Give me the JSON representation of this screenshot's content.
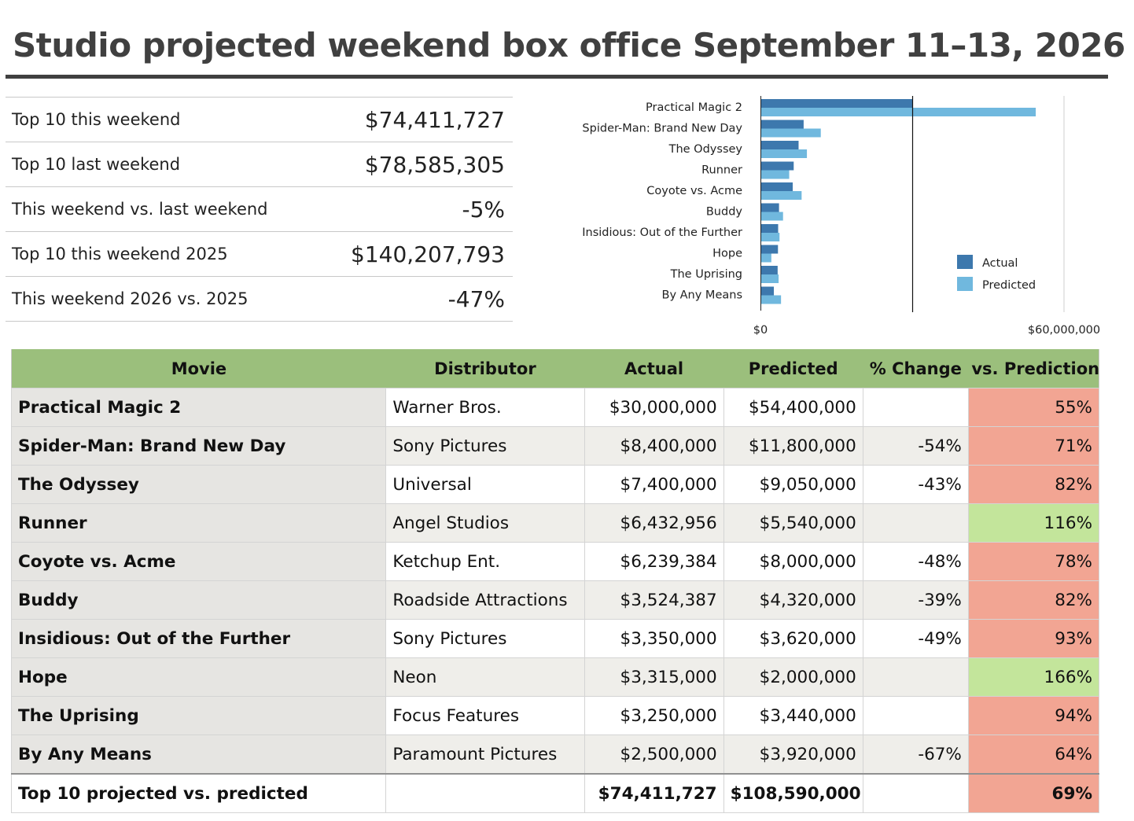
{
  "title": "Studio projected weekend box office September 11–13, 2026",
  "summary": [
    {
      "label": "Top 10 this weekend",
      "value": "$74,411,727",
      "tone": "pos"
    },
    {
      "label": "Top 10 last weekend",
      "value": "$78,585,305",
      "tone": "pos"
    },
    {
      "label": "This weekend vs. last weekend",
      "value": "-5%",
      "tone": "neg"
    },
    {
      "label": "Top 10 this weekend 2025",
      "value": "$140,207,793",
      "tone": "pos"
    },
    {
      "label": "This weekend 2026 vs. 2025",
      "value": "-47%",
      "tone": "neg"
    }
  ],
  "colors": {
    "actual": "#3d78ad",
    "predicted": "#70b8de",
    "positive_text": "#6a9a3a",
    "negative_text": "#d9381e",
    "header_bg": "#9bbf7c",
    "below_prediction": "#f2a593",
    "above_prediction": "#c3e59b"
  },
  "chart_data": {
    "type": "bar",
    "orientation": "horizontal",
    "categories": [
      "Practical Magic 2",
      "Spider-Man: Brand New Day",
      "The Odyssey",
      "Runner",
      "Coyote vs. Acme",
      "Buddy",
      "Insidious: Out of the Further",
      "Hope",
      "The Uprising",
      "By Any Means"
    ],
    "series": [
      {
        "name": "Actual",
        "values": [
          30000000,
          8400000,
          7400000,
          6432956,
          6239384,
          3524387,
          3350000,
          3315000,
          3250000,
          2500000
        ]
      },
      {
        "name": "Predicted",
        "values": [
          54400000,
          11800000,
          9050000,
          5540000,
          8000000,
          4320000,
          3620000,
          2000000,
          3440000,
          3920000
        ]
      }
    ],
    "xlim": [
      0,
      60000000
    ],
    "xticks": [
      "$0",
      "$60,000,000"
    ],
    "reference_line": 30000000,
    "legend": "right"
  },
  "table": {
    "headers": [
      "Movie",
      "Distributor",
      "Actual",
      "Predicted",
      "% Change",
      "vs. Prediction"
    ],
    "rows": [
      {
        "movie": "Practical Magic 2",
        "distributor": "Warner Bros.",
        "actual": "$30,000,000",
        "predicted": "$54,400,000",
        "change": "",
        "vs": "55%",
        "vs_status": "below"
      },
      {
        "movie": "Spider-Man: Brand New Day",
        "distributor": "Sony Pictures",
        "actual": "$8,400,000",
        "predicted": "$11,800,000",
        "change": "-54%",
        "vs": "71%",
        "vs_status": "below"
      },
      {
        "movie": "The Odyssey",
        "distributor": "Universal",
        "actual": "$7,400,000",
        "predicted": "$9,050,000",
        "change": "-43%",
        "vs": "82%",
        "vs_status": "below"
      },
      {
        "movie": "Runner",
        "distributor": "Angel Studios",
        "actual": "$6,432,956",
        "predicted": "$5,540,000",
        "change": "",
        "vs": "116%",
        "vs_status": "above"
      },
      {
        "movie": "Coyote vs. Acme",
        "distributor": "Ketchup Ent.",
        "actual": "$6,239,384",
        "predicted": "$8,000,000",
        "change": "-48%",
        "vs": "78%",
        "vs_status": "below"
      },
      {
        "movie": "Buddy",
        "distributor": "Roadside Attractions",
        "actual": "$3,524,387",
        "predicted": "$4,320,000",
        "change": "-39%",
        "vs": "82%",
        "vs_status": "below"
      },
      {
        "movie": "Insidious: Out of the Further",
        "distributor": "Sony Pictures",
        "actual": "$3,350,000",
        "predicted": "$3,620,000",
        "change": "-49%",
        "vs": "93%",
        "vs_status": "below"
      },
      {
        "movie": "Hope",
        "distributor": "Neon",
        "actual": "$3,315,000",
        "predicted": "$2,000,000",
        "change": "",
        "vs": "166%",
        "vs_status": "above"
      },
      {
        "movie": "The Uprising",
        "distributor": "Focus Features",
        "actual": "$3,250,000",
        "predicted": "$3,440,000",
        "change": "",
        "vs": "94%",
        "vs_status": "below"
      },
      {
        "movie": "By Any Means",
        "distributor": "Paramount Pictures",
        "actual": "$2,500,000",
        "predicted": "$3,920,000",
        "change": "-67%",
        "vs": "64%",
        "vs_status": "below"
      }
    ],
    "total": {
      "label": "Top 10 projected vs. predicted",
      "actual": "$74,411,727",
      "predicted": "$108,590,000",
      "vs": "69%",
      "vs_status": "below"
    }
  }
}
